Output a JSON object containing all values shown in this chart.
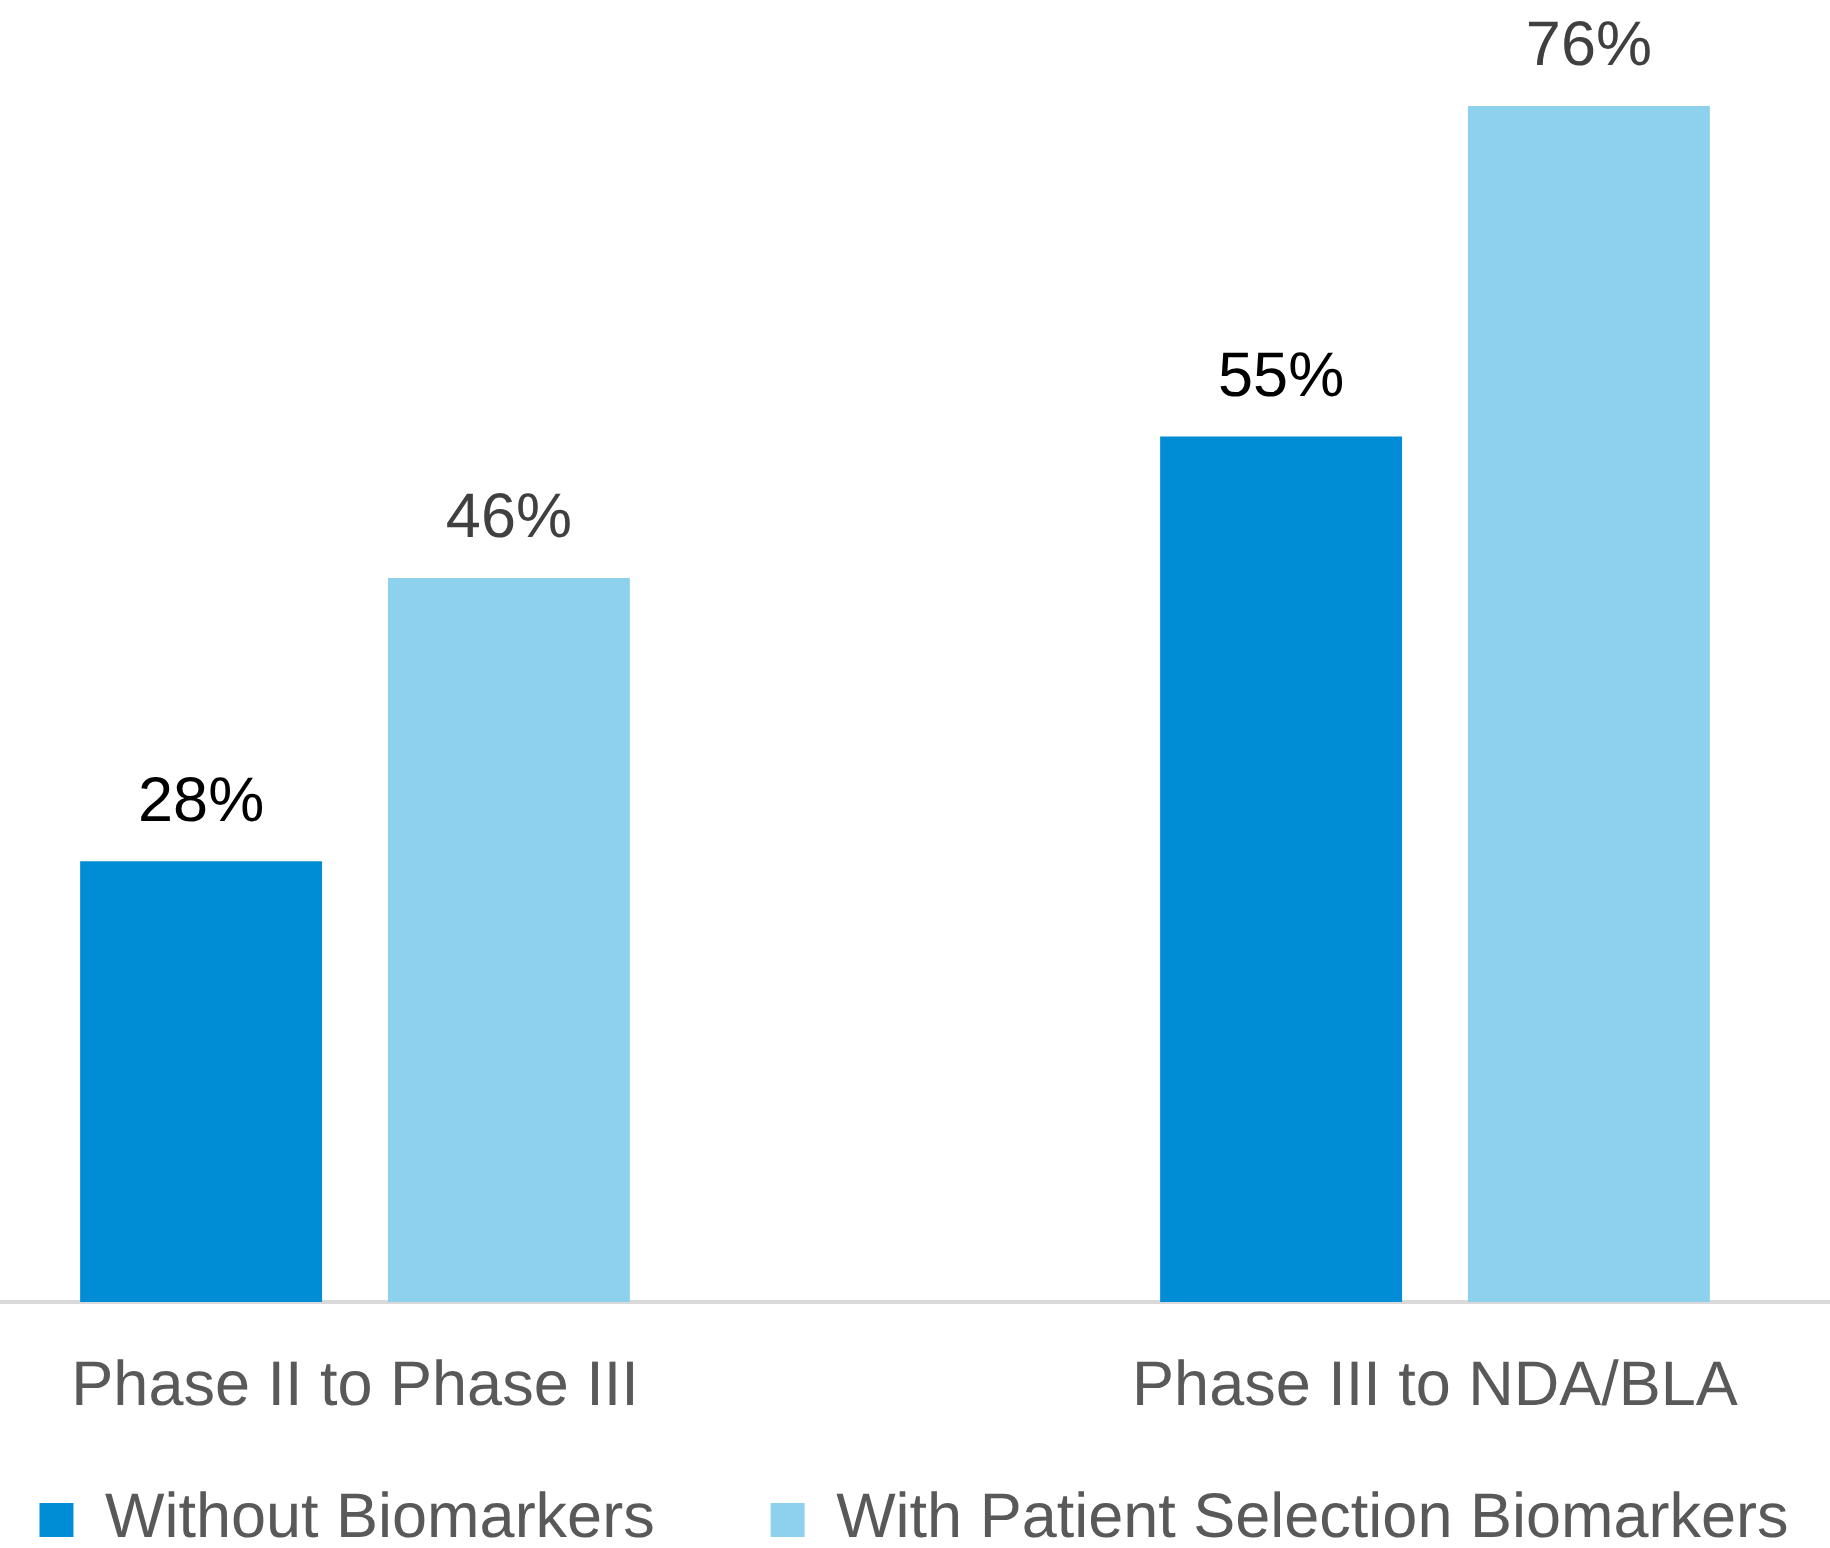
{
  "chart_data": {
    "type": "bar",
    "categories": [
      "Phase II to Phase III",
      "Phase III to NDA/BLA"
    ],
    "series": [
      {
        "name": "Without Biomarkers",
        "color": "#008dd5",
        "values": [
          28,
          55
        ],
        "value_labels": [
          "28%",
          "55%"
        ]
      },
      {
        "name": "With Patient Selection Biomarkers",
        "color": "#8dd1ef",
        "values": [
          46,
          76
        ],
        "value_labels": [
          "46%",
          "76%"
        ]
      }
    ],
    "legend": "bottom"
  }
}
